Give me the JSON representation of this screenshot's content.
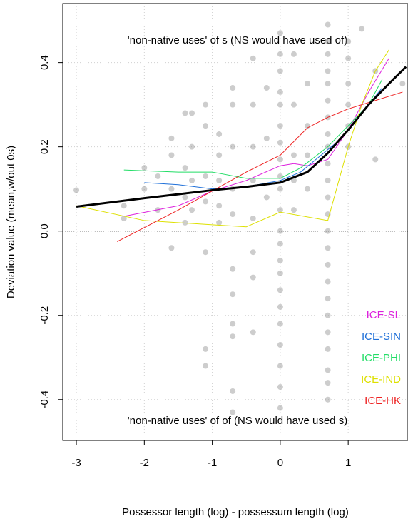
{
  "chart_data": {
    "type": "scatter",
    "x_label": "Possessor length (log) - possessum length (log)",
    "y_label": "Deviation value (mean,w/out 0s)",
    "annotations": [
      "'non-native uses' of s (NS would have used of)",
      "'non-native uses' of of (NS would have used s)"
    ],
    "xlim": [
      -3.2,
      1.88
    ],
    "ylim": [
      -0.497,
      0.54
    ],
    "xticks": [
      -3,
      -2,
      -1,
      0,
      1
    ],
    "yticks": [
      -0.4,
      -0.2,
      {
        "value": 0,
        "label": "0.0"
      },
      0.2,
      0.4
    ],
    "grid": true,
    "hline": 0,
    "legend": "right",
    "points": {
      "color": "#909090",
      "x": [
        -3,
        -2.3,
        -2.3,
        -2,
        -2,
        -1.8,
        -1.8,
        -1.6,
        -1.6,
        -1.6,
        -1.6,
        -1.4,
        -1.4,
        -1.4,
        -1.4,
        -1.3,
        -1.3,
        -1.3,
        -1.3,
        -1.1,
        -1.1,
        -1.1,
        -1.1,
        -1.1,
        -1.1,
        -1.1,
        -0.9,
        -0.9,
        -0.9,
        -0.9,
        -0.9,
        -0.7,
        -0.7,
        -0.7,
        -0.7,
        -0.7,
        -0.7,
        -0.7,
        -0.7,
        -0.7,
        -0.7,
        -0.7,
        -0.4,
        -0.4,
        -0.4,
        -0.4,
        -0.4,
        -0.4,
        -0.4,
        -0.4,
        -0.2,
        -0.2,
        -0.2,
        0,
        0,
        0,
        0,
        0,
        0,
        0,
        0,
        0,
        0,
        0,
        0,
        0,
        0,
        0,
        0,
        0,
        0,
        0,
        0,
        0,
        0,
        0.2,
        0.2,
        0.2,
        0.2,
        0.2,
        0.4,
        0.4,
        0.4,
        0.4,
        0.7,
        0.7,
        0.7,
        0.7,
        0.7,
        0.7,
        0.7,
        0.7,
        0.7,
        0.7,
        0.7,
        0.7,
        0.7,
        0.7,
        0.7,
        0.7,
        0.7,
        0.7,
        0.7,
        0.7,
        0.7,
        0.7,
        0.7,
        0.7,
        1,
        1,
        1,
        1,
        1,
        1,
        1.2,
        1.4,
        1.4,
        1.8
      ],
      "y": [
        0.097,
        0.06,
        0.03,
        0.15,
        0.1,
        0.13,
        0.05,
        0.22,
        0.18,
        0.1,
        -0.04,
        0.28,
        0.15,
        0.08,
        0.02,
        0.28,
        0.2,
        0.12,
        0.05,
        0.3,
        0.25,
        0.13,
        0.07,
        -0.05,
        -0.28,
        -0.32,
        0.23,
        0.18,
        0.12,
        0.06,
        0.02,
        0.34,
        0.3,
        0.2,
        0.1,
        0.04,
        -0.09,
        -0.15,
        -0.22,
        -0.25,
        -0.38,
        -0.43,
        0.41,
        0.3,
        0.2,
        0.12,
        0.03,
        -0.05,
        -0.11,
        -0.24,
        0.34,
        0.22,
        0.08,
        0.47,
        0.42,
        0.38,
        0.33,
        0.3,
        0.25,
        0.21,
        0.17,
        0.13,
        0.1,
        0.05,
        0,
        -0.03,
        -0.07,
        -0.1,
        -0.14,
        -0.18,
        -0.22,
        -0.27,
        -0.32,
        -0.37,
        -0.42,
        0.42,
        0.3,
        0.18,
        0.12,
        0.05,
        0.35,
        0.25,
        0.18,
        0.1,
        0.49,
        0.45,
        0.42,
        0.38,
        0.35,
        0.31,
        0.27,
        0.23,
        0.2,
        0.16,
        0.12,
        0.08,
        0.04,
        0,
        -0.04,
        -0.08,
        -0.12,
        -0.16,
        -0.2,
        -0.24,
        -0.28,
        -0.33,
        -0.36,
        -0.4,
        0.45,
        0.41,
        0.35,
        0.3,
        0.25,
        0.2,
        0.48,
        0.38,
        0.17,
        0.35
      ]
    },
    "series": [
      {
        "name": "ICE-SL",
        "color": "#dd22dd",
        "x": [
          -2.3,
          -1.5,
          -1,
          -0.5,
          0,
          0.2,
          0.4,
          0.7,
          1,
          1.3,
          1.6
        ],
        "values": [
          0.035,
          0.06,
          0.095,
          0.12,
          0.155,
          0.16,
          0.155,
          0.17,
          0.24,
          0.33,
          0.41
        ]
      },
      {
        "name": "ICE-SIN",
        "color": "#1e6fd8",
        "x": [
          -2,
          -1.5,
          -1,
          -0.5,
          0,
          0.3,
          0.6,
          0.9,
          1.2,
          1.5
        ],
        "values": [
          0.115,
          0.11,
          0.1,
          0.105,
          0.12,
          0.14,
          0.18,
          0.22,
          0.28,
          0.34
        ]
      },
      {
        "name": "ICE-PHI",
        "color": "#22dd66",
        "x": [
          -2.3,
          -1.5,
          -1,
          -0.5,
          0,
          0.3,
          0.7,
          1,
          1.3,
          1.5
        ],
        "values": [
          0.145,
          0.14,
          0.14,
          0.125,
          0.125,
          0.15,
          0.2,
          0.25,
          0.3,
          0.36
        ]
      },
      {
        "name": "ICE-IND",
        "color": "#dde000",
        "x": [
          -3,
          -2,
          -1,
          -0.5,
          0,
          0.7,
          1,
          1.2,
          1.4,
          1.6
        ],
        "values": [
          0.06,
          0.025,
          0.015,
          0.01,
          0.045,
          0.025,
          0.2,
          0.3,
          0.38,
          0.43
        ]
      },
      {
        "name": "ICE-HK",
        "color": "#ee2222",
        "x": [
          -2.4,
          -1.5,
          -1,
          -0.5,
          0,
          0.4,
          0.7,
          1,
          1.4,
          1.8
        ],
        "values": [
          -0.025,
          0.05,
          0.095,
          0.14,
          0.18,
          0.245,
          0.27,
          0.29,
          0.31,
          0.33
        ]
      }
    ],
    "smooth": {
      "color": "#000000",
      "x": [
        -3,
        -2,
        -1,
        -0.5,
        0,
        0.4,
        0.7,
        1,
        1.3,
        1.6,
        1.85
      ],
      "values": [
        0.058,
        0.078,
        0.097,
        0.105,
        0.115,
        0.14,
        0.185,
        0.24,
        0.3,
        0.35,
        0.39
      ]
    }
  }
}
